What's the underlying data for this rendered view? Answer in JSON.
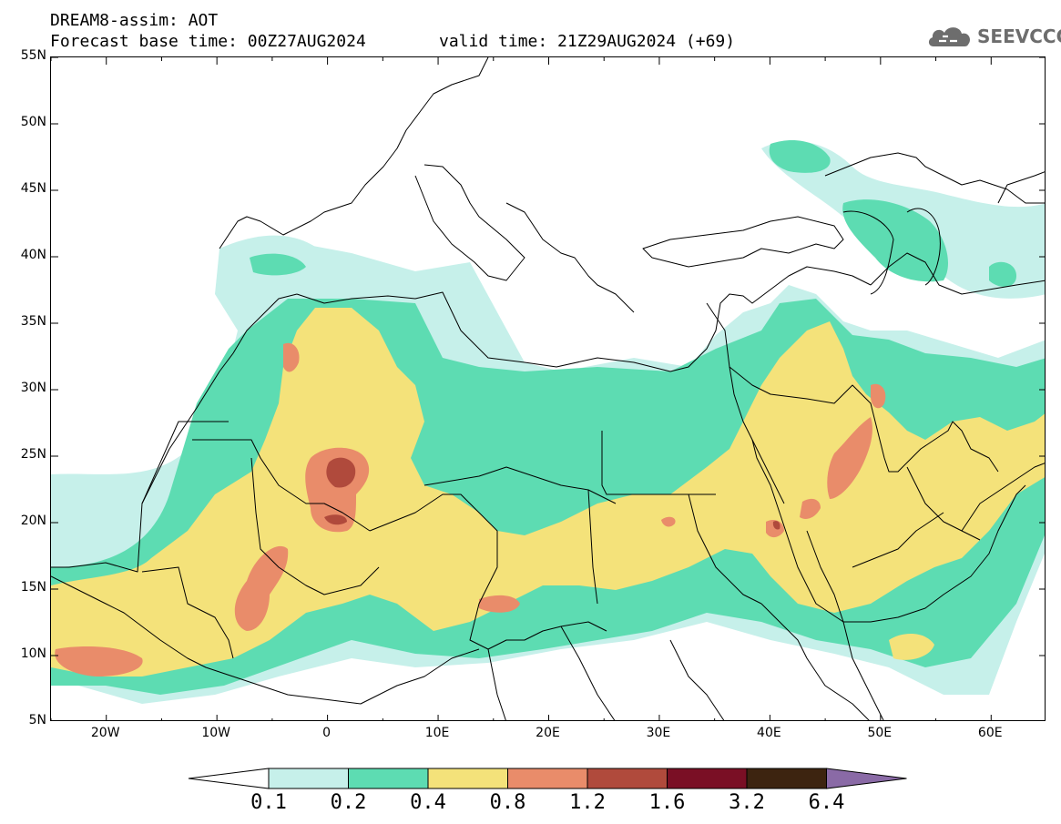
{
  "header": {
    "title_line1": "DREAM8-assim: AOT",
    "title_line2": "Forecast base time: 00Z27AUG2024",
    "valid_time": "valid time: 21Z29AUG2024 (+69)"
  },
  "logo": {
    "text": "SEEVCCC",
    "icon": "cloud-icon"
  },
  "map": {
    "lon_range": [
      -25,
      65
    ],
    "lat_range": [
      5,
      55
    ],
    "lat_labels": [
      "55N",
      "50N",
      "45N",
      "40N",
      "35N",
      "30N",
      "25N",
      "20N",
      "15N",
      "10N",
      "5N"
    ],
    "lon_labels": [
      "20W",
      "10W",
      "0",
      "10E",
      "20E",
      "30E",
      "40E",
      "50E",
      "60E"
    ]
  },
  "legend": {
    "levels": [
      "0.1",
      "0.2",
      "0.4",
      "0.8",
      "1.2",
      "1.6",
      "3.2",
      "6.4"
    ],
    "colors": [
      "#c6f0ea",
      "#5ddcb2",
      "#f4e27a",
      "#e98c6a",
      "#b04a3c",
      "#7a0f25",
      "#3d2410",
      "#8a6aa6"
    ],
    "lower_arrow_color": "#ffffff",
    "upper_arrow_color": "#8a6aa6"
  }
}
